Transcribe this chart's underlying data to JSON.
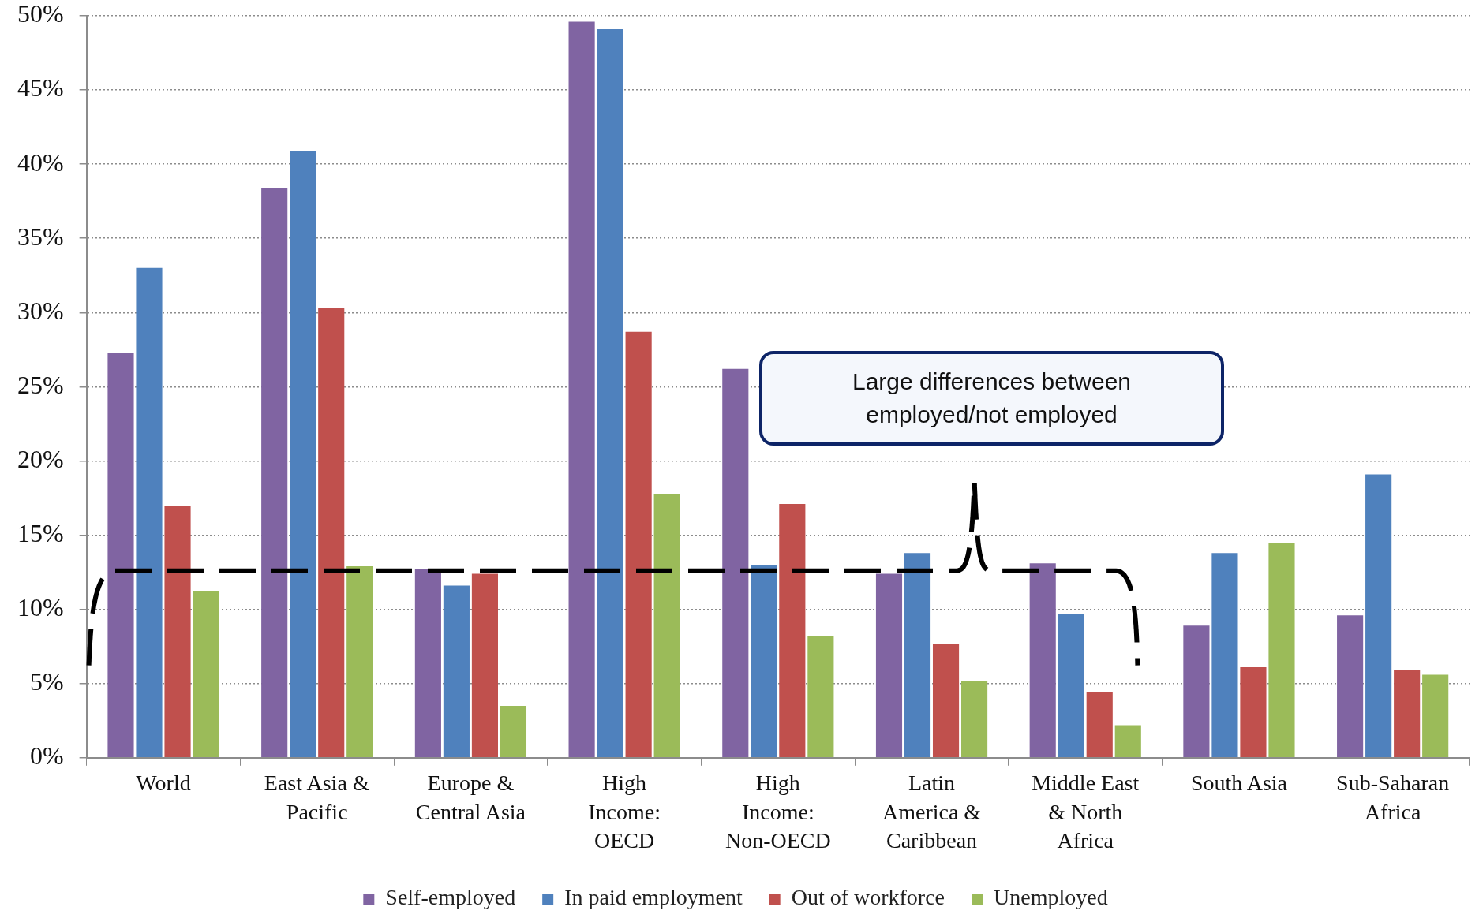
{
  "chart_data": {
    "type": "bar",
    "categories": [
      "World",
      "East Asia & Pacific",
      "Europe & Central Asia",
      "High Income: OECD",
      "High Income: Non-OECD",
      "Latin America & Caribbean",
      "Middle East & North Africa",
      "South Asia",
      "Sub-Saharan Africa"
    ],
    "series": [
      {
        "name": "Self-employed",
        "color": "#8064a2",
        "values": [
          27.3,
          38.4,
          12.7,
          49.6,
          26.2,
          12.4,
          13.1,
          8.9,
          9.6
        ]
      },
      {
        "name": "In paid employment",
        "color": "#4f81bd",
        "values": [
          33.0,
          40.9,
          11.6,
          49.1,
          13.0,
          13.8,
          9.7,
          13.8,
          19.1
        ]
      },
      {
        "name": "Out of workforce",
        "color": "#c0504d",
        "values": [
          17.0,
          30.3,
          12.4,
          28.7,
          17.1,
          7.7,
          4.4,
          6.1,
          5.9
        ]
      },
      {
        "name": "Unemployed",
        "color": "#9bbb59",
        "values": [
          11.2,
          12.9,
          3.5,
          17.8,
          8.2,
          5.2,
          2.2,
          14.5,
          5.6
        ]
      }
    ],
    "ylim": [
      0,
      50
    ],
    "yticks": [
      {
        "value": 0,
        "label": "0%"
      },
      {
        "value": 5,
        "label": "5%"
      },
      {
        "value": 10,
        "label": "10%"
      },
      {
        "value": 15,
        "label": "15%"
      },
      {
        "value": 20,
        "label": "20%"
      },
      {
        "value": 25,
        "label": "25%"
      },
      {
        "value": 30,
        "label": "30%"
      },
      {
        "value": 35,
        "label": "35%"
      },
      {
        "value": 40,
        "label": "40%"
      },
      {
        "value": 45,
        "label": "45%"
      },
      {
        "value": 50,
        "label": "50%"
      }
    ],
    "grid": "y",
    "legend": "bottom",
    "annotations": [
      "Large differences between employed/not employed"
    ]
  }
}
